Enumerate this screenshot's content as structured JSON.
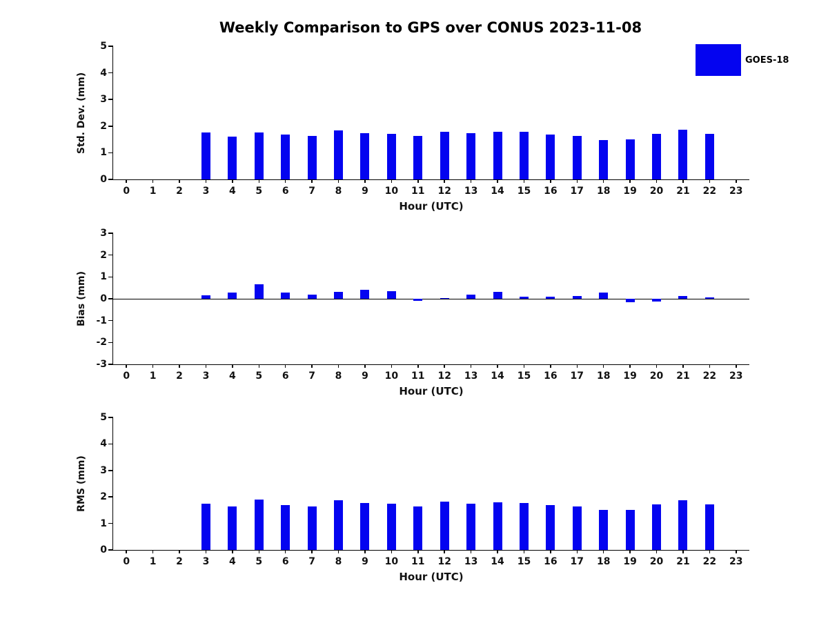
{
  "title": "Weekly Comparison to GPS over CONUS 2023-11-08",
  "legend": {
    "label": "GOES-18",
    "color": "#0404f0"
  },
  "chart_data": [
    {
      "type": "bar",
      "series_name": "GOES-18",
      "title": "Weekly Comparison to GPS over CONUS 2023-11-08",
      "xlabel": "Hour (UTC)",
      "ylabel": "Std. Dev. (mm)",
      "ylim": [
        0,
        5
      ],
      "yticks": [
        0,
        1,
        2,
        3,
        4,
        5
      ],
      "grid": false,
      "legend_position": "upper right",
      "categories": [
        "0",
        "1",
        "2",
        "3",
        "4",
        "5",
        "6",
        "7",
        "8",
        "9",
        "10",
        "11",
        "12",
        "13",
        "14",
        "15",
        "16",
        "17",
        "18",
        "19",
        "20",
        "21",
        "22",
        "23"
      ],
      "values": [
        null,
        null,
        null,
        1.75,
        1.6,
        1.75,
        1.68,
        1.63,
        1.85,
        1.73,
        1.72,
        1.63,
        1.8,
        1.73,
        1.78,
        1.78,
        1.68,
        1.62,
        1.48,
        1.5,
        1.7,
        1.87,
        1.7,
        null
      ]
    },
    {
      "type": "bar",
      "series_name": "GOES-18",
      "xlabel": "Hour (UTC)",
      "ylabel": "Bias (mm)",
      "ylim": [
        -3,
        3
      ],
      "yticks": [
        -3,
        -2,
        -1,
        0,
        1,
        2,
        3
      ],
      "grid": false,
      "categories": [
        "0",
        "1",
        "2",
        "3",
        "4",
        "5",
        "6",
        "7",
        "8",
        "9",
        "10",
        "11",
        "12",
        "13",
        "14",
        "15",
        "16",
        "17",
        "18",
        "19",
        "20",
        "21",
        "22",
        "23"
      ],
      "values": [
        null,
        null,
        null,
        0.15,
        0.3,
        0.65,
        0.3,
        0.2,
        0.33,
        0.4,
        0.35,
        -0.1,
        0.02,
        0.2,
        0.33,
        0.08,
        0.1,
        0.12,
        0.28,
        -0.15,
        -0.12,
        0.12,
        0.07,
        null
      ]
    },
    {
      "type": "bar",
      "series_name": "GOES-18",
      "xlabel": "Hour (UTC)",
      "ylabel": "RMS (mm)",
      "ylim": [
        0,
        5
      ],
      "yticks": [
        0,
        1,
        2,
        3,
        4,
        5
      ],
      "grid": false,
      "categories": [
        "0",
        "1",
        "2",
        "3",
        "4",
        "5",
        "6",
        "7",
        "8",
        "9",
        "10",
        "11",
        "12",
        "13",
        "14",
        "15",
        "16",
        "17",
        "18",
        "19",
        "20",
        "21",
        "22",
        "23"
      ],
      "values": [
        null,
        null,
        null,
        1.75,
        1.65,
        1.9,
        1.7,
        1.65,
        1.88,
        1.78,
        1.75,
        1.65,
        1.83,
        1.75,
        1.8,
        1.78,
        1.7,
        1.63,
        1.52,
        1.52,
        1.72,
        1.87,
        1.72,
        null
      ]
    }
  ]
}
